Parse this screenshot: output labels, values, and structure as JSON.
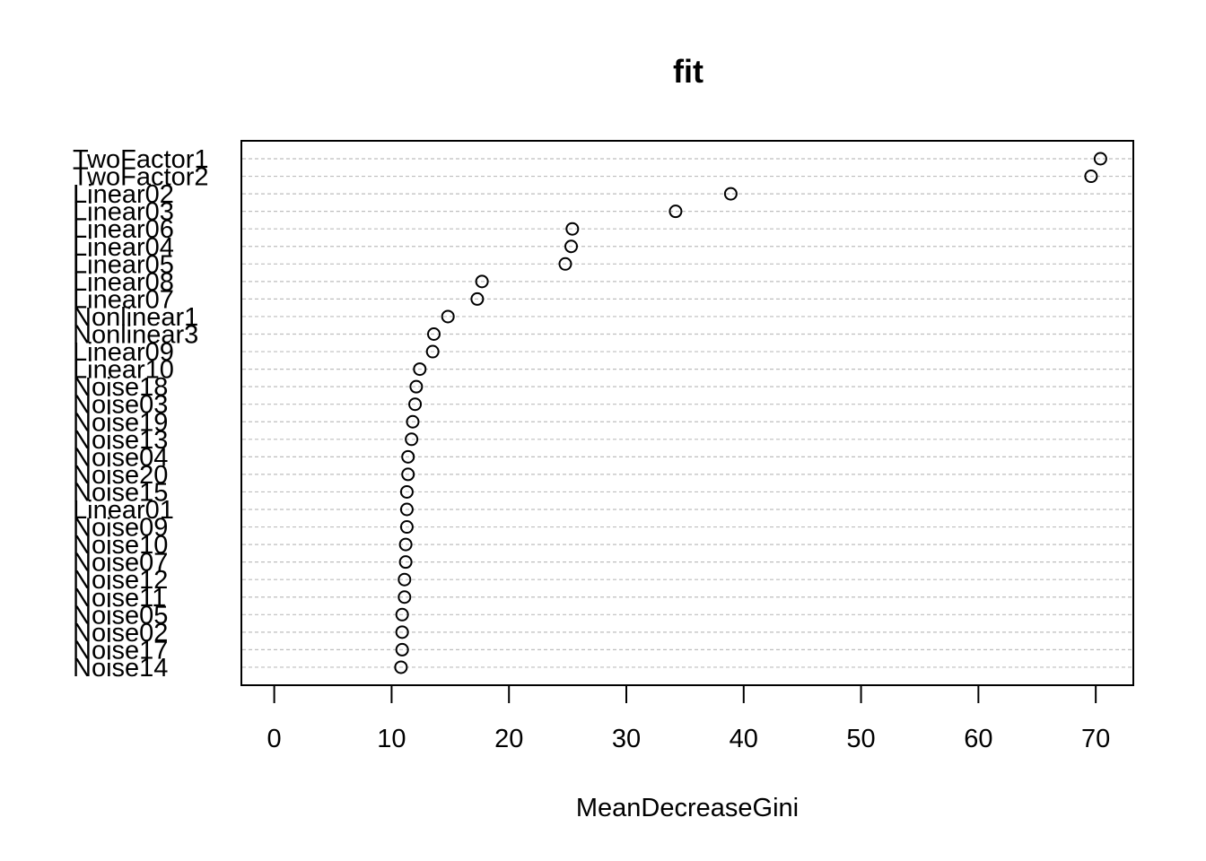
{
  "chart_data": {
    "type": "scatter",
    "title": "fit",
    "xlabel": "MeanDecreaseGini",
    "ylabel": "",
    "xlim": [
      -2.8,
      73.2
    ],
    "xticks": [
      0,
      10,
      20,
      30,
      40,
      50,
      60,
      70
    ],
    "grid": "horizontal dashed",
    "categories": [
      "TwoFactor1",
      "TwoFactor2",
      "Linear02",
      "Linear03",
      "Linear06",
      "Linear04",
      "Linear05",
      "Linear08",
      "Linear07",
      "Nonlinear1",
      "Nonlinear3",
      "Linear09",
      "Linear10",
      "Noise18",
      "Noise03",
      "Noise19",
      "Noise13",
      "Noise04",
      "Noise20",
      "Noise15",
      "Linear01",
      "Noise09",
      "Noise10",
      "Noise07",
      "Noise12",
      "Noise11",
      "Noise05",
      "Noise02",
      "Noise17",
      "Noise14"
    ],
    "values": [
      70.4,
      69.6,
      38.9,
      34.2,
      25.4,
      25.3,
      24.8,
      17.7,
      17.3,
      14.8,
      13.6,
      13.5,
      12.4,
      12.1,
      12.0,
      11.8,
      11.7,
      11.4,
      11.4,
      11.3,
      11.3,
      11.3,
      11.2,
      11.2,
      11.1,
      11.1,
      10.9,
      10.9,
      10.9,
      10.8
    ]
  }
}
